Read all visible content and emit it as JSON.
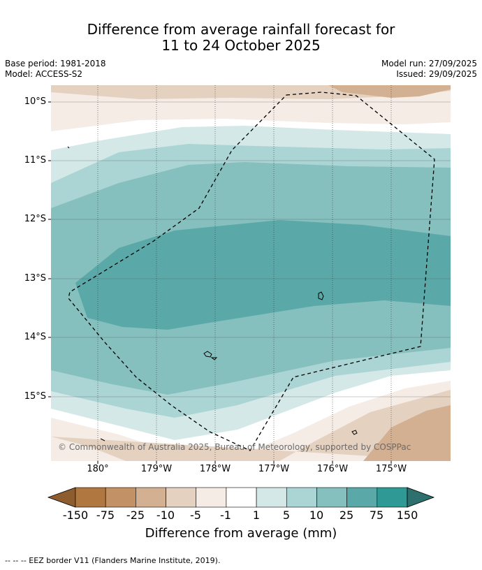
{
  "title": {
    "line1": "Difference from average rainfall forecast for",
    "line2": "11 to 24 October 2025"
  },
  "meta": {
    "base_period": "Base period: 1981-2018",
    "model": "Model: ACCESS-S2",
    "model_run": "Model run: 27/09/2025",
    "issued": "Issued: 29/09/2025"
  },
  "map": {
    "lat_labels": [
      "10°S",
      "11°S",
      "12°S",
      "13°S",
      "14°S",
      "15°S"
    ],
    "lon_labels": [
      "180°",
      "179°W",
      "178°W",
      "177°W",
      "176°W",
      "175°W"
    ],
    "copyright": "© Commonwealth of Australia 2025, Bureau of Meteorology, supported by COSPPac",
    "border_style": "dashed"
  },
  "legend": {
    "ticks": [
      "-150",
      "-75",
      "-25",
      "-10",
      "-5",
      "-1",
      "1",
      "5",
      "10",
      "25",
      "75",
      "150"
    ],
    "colors": [
      "#8d5d30",
      "#b07840",
      "#c29266",
      "#d3b092",
      "#e5d1c0",
      "#f5ece6",
      "#ffffff",
      "#d4e8e8",
      "#abd4d4",
      "#85bfbe",
      "#5aa9a8",
      "#2f9995",
      "#2e706d"
    ],
    "title": "Difference from average (mm)"
  },
  "footnote": "-- -- -- EEZ border V11 (Flanders Marine Institute, 2019)."
}
